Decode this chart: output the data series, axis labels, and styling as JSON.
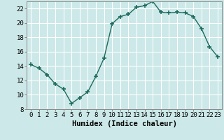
{
  "x": [
    0,
    1,
    2,
    3,
    4,
    5,
    6,
    7,
    8,
    9,
    10,
    11,
    12,
    13,
    14,
    15,
    16,
    17,
    18,
    19,
    20,
    21,
    22,
    23
  ],
  "y": [
    14.2,
    13.7,
    12.8,
    11.5,
    10.8,
    8.8,
    9.6,
    10.4,
    12.6,
    15.1,
    19.9,
    20.9,
    21.2,
    22.2,
    22.4,
    23.0,
    21.5,
    21.4,
    21.5,
    21.4,
    20.9,
    19.2,
    16.7,
    15.3
  ],
  "line_color": "#1e6b5e",
  "marker": "+",
  "bg_color": "#cce8e8",
  "grid_color": "#ffffff",
  "xlabel": "Humidex (Indice chaleur)",
  "ylim": [
    8,
    23
  ],
  "xlim": [
    -0.5,
    23.5
  ],
  "yticks": [
    8,
    10,
    12,
    14,
    16,
    18,
    20,
    22
  ],
  "xticks": [
    0,
    1,
    2,
    3,
    4,
    5,
    6,
    7,
    8,
    9,
    10,
    11,
    12,
    13,
    14,
    15,
    16,
    17,
    18,
    19,
    20,
    21,
    22,
    23
  ],
  "tick_fontsize": 6.5,
  "xlabel_fontsize": 7.5,
  "linewidth": 1.0,
  "markersize": 5,
  "spine_color": "#888888"
}
